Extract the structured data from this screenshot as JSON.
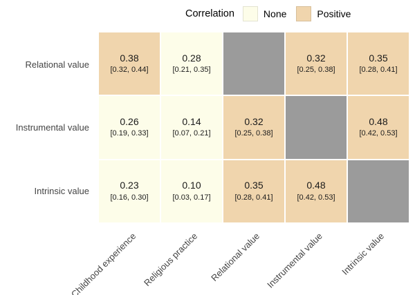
{
  "legend": {
    "title": "Correlation",
    "items": [
      {
        "label": "None",
        "key": "none"
      },
      {
        "label": "Positive",
        "key": "positive"
      }
    ]
  },
  "chart_data": {
    "type": "heatmap",
    "title": "",
    "rows": [
      "Relational value",
      "Instrumental value",
      "Intrinsic value"
    ],
    "columns": [
      "Childhood experience",
      "Religious practice",
      "Relational value",
      "Instrumental value",
      "Intrinsic value"
    ],
    "cells": [
      [
        {
          "value": "0.38",
          "ci": "[0.32, 0.44]",
          "category": "positive"
        },
        {
          "value": "0.28",
          "ci": "[0.21, 0.35]",
          "category": "none"
        },
        {
          "category": "diagonal"
        },
        {
          "value": "0.32",
          "ci": "[0.25, 0.38]",
          "category": "positive"
        },
        {
          "value": "0.35",
          "ci": "[0.28, 0.41]",
          "category": "positive"
        }
      ],
      [
        {
          "value": "0.26",
          "ci": "[0.19, 0.33]",
          "category": "none"
        },
        {
          "value": "0.14",
          "ci": "[0.07, 0.21]",
          "category": "none"
        },
        {
          "value": "0.32",
          "ci": "[0.25, 0.38]",
          "category": "positive"
        },
        {
          "category": "diagonal"
        },
        {
          "value": "0.48",
          "ci": "[0.42, 0.53]",
          "category": "positive"
        }
      ],
      [
        {
          "value": "0.23",
          "ci": "[0.16, 0.30]",
          "category": "none"
        },
        {
          "value": "0.10",
          "ci": "[0.03, 0.17]",
          "category": "none"
        },
        {
          "value": "0.35",
          "ci": "[0.28, 0.41]",
          "category": "positive"
        },
        {
          "value": "0.48",
          "ci": "[0.42, 0.53]",
          "category": "positive"
        },
        {
          "category": "diagonal"
        }
      ]
    ],
    "colors": {
      "none": "#FDFDE9",
      "positive": "#F0D5AD",
      "diagonal": "#9B9B9B"
    },
    "legend_position": "top",
    "grid": false
  }
}
